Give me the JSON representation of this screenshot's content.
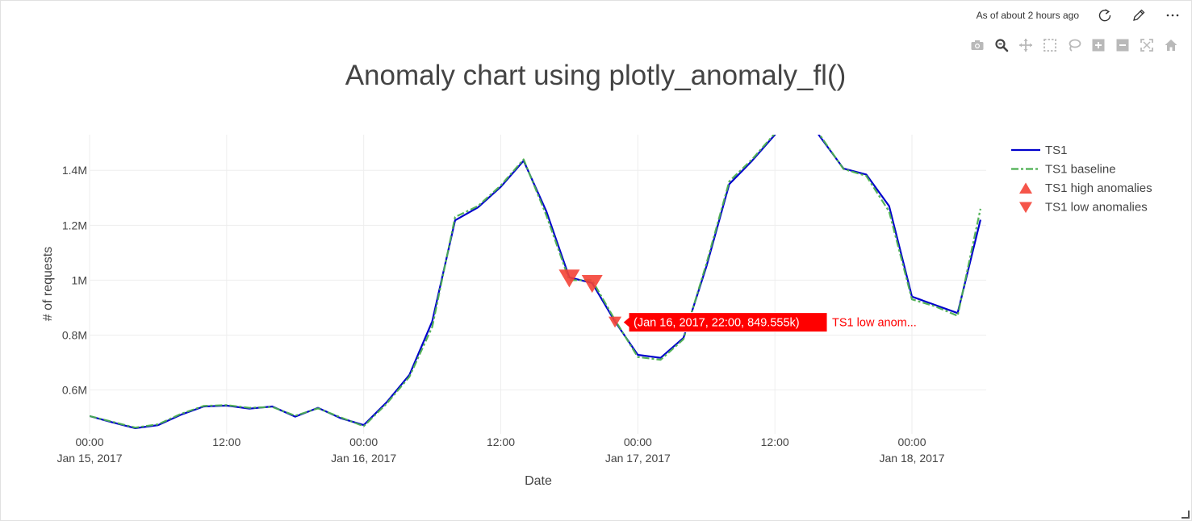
{
  "header": {
    "as_of": "As of about 2 hours ago",
    "refresh_icon": "refresh-icon",
    "edit_icon": "pencil-icon",
    "more_icon": "more-horizontal-icon"
  },
  "modebar": [
    "camera-icon",
    "zoom-icon",
    "pan-icon",
    "box-select-icon",
    "lasso-icon",
    "zoom-in-icon",
    "zoom-out-icon",
    "autoscale-icon",
    "reset-axes-icon"
  ],
  "chart_data": {
    "type": "line",
    "title": "Anomaly chart using plotly_anomaly_fl()",
    "xlabel": "Date",
    "ylabel": "# of requests",
    "x_start": "2017-01-15T00:00",
    "step_hours": 2,
    "xlim": [
      "2017-01-15T00:00",
      "2017-01-18T06:30"
    ],
    "ylim": [
      440000,
      1530000
    ],
    "x_ticks": [
      {
        "hours": 0,
        "line1": "00:00",
        "line2": "Jan 15, 2017"
      },
      {
        "hours": 12,
        "line1": "12:00",
        "line2": ""
      },
      {
        "hours": 24,
        "line1": "00:00",
        "line2": "Jan 16, 2017"
      },
      {
        "hours": 36,
        "line1": "12:00",
        "line2": ""
      },
      {
        "hours": 48,
        "line1": "00:00",
        "line2": "Jan 17, 2017"
      },
      {
        "hours": 60,
        "line1": "12:00",
        "line2": ""
      },
      {
        "hours": 72,
        "line1": "00:00",
        "line2": "Jan 18, 2017"
      }
    ],
    "y_ticks": [
      {
        "value": 600000,
        "label": "0.6M"
      },
      {
        "value": 800000,
        "label": "0.8M"
      },
      {
        "value": 1000000,
        "label": "1M"
      },
      {
        "value": 1200000,
        "label": "1.2M"
      },
      {
        "value": 1400000,
        "label": "1.4M"
      }
    ],
    "grid": true,
    "legend_position": "top-right",
    "series": [
      {
        "name": "TS1",
        "color": "#0000cc",
        "style": "solid",
        "values": [
          505000,
          482000,
          461000,
          472000,
          510000,
          540000,
          543000,
          532000,
          540000,
          503000,
          535000,
          497000,
          472000,
          555000,
          655000,
          850000,
          1218000,
          1265000,
          1340000,
          1435000,
          1250000,
          1010000,
          990000,
          849555,
          728000,
          717000,
          790000,
          1050000,
          1350000,
          1435000,
          1530000,
          1640000,
          1520000,
          1407000,
          1385000,
          1270000,
          940000,
          910000,
          880000,
          1220000
        ]
      },
      {
        "name": "TS1 baseline",
        "color": "#4caf50",
        "style": "dashdot",
        "values": [
          505000,
          484000,
          463000,
          475000,
          513000,
          542000,
          545000,
          535000,
          538000,
          506000,
          533000,
          500000,
          468000,
          550000,
          648000,
          830000,
          1230000,
          1270000,
          1345000,
          1440000,
          1235000,
          1000000,
          1000000,
          855000,
          720000,
          710000,
          785000,
          1060000,
          1360000,
          1440000,
          1535000,
          1645000,
          1525000,
          1405000,
          1380000,
          1250000,
          930000,
          905000,
          870000,
          1260000
        ]
      }
    ],
    "high_anomalies": {
      "name": "TS1 high anomalies",
      "color": "#f44336",
      "points": []
    },
    "low_anomalies": {
      "name": "TS1 low anomalies",
      "color": "#f44336",
      "points": [
        {
          "hours": 42,
          "value": 1010000
        },
        {
          "hours": 44,
          "value": 990000
        },
        {
          "hours": 46,
          "value": 849555
        }
      ]
    },
    "tooltip": {
      "hours": 46,
      "value": 849555,
      "text": "(Jan 16, 2017, 22:00, 849.555k)",
      "series": "TS1 low anom..."
    }
  }
}
